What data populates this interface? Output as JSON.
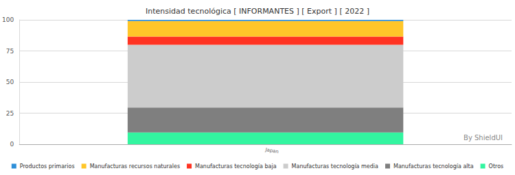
{
  "chart_data": {
    "type": "bar",
    "title": "Intensidad tecnológica [ INFORMANTES ] [ Export ] [ 2022 ]",
    "annotation": "By ShieldUI",
    "categories": [
      "Japan"
    ],
    "series": [
      {
        "name": "Productos primarios",
        "color": "#2f8fd8",
        "values": [
          1
        ]
      },
      {
        "name": "Manufacturas recursos naturales",
        "color": "#ffc629",
        "values": [
          12.5
        ]
      },
      {
        "name": "Manufacturas tecnología baja",
        "color": "#ff3322",
        "values": [
          6.5
        ]
      },
      {
        "name": "Manufacturas tecnología media",
        "color": "#cccccc",
        "values": [
          50.5
        ]
      },
      {
        "name": "Manufacturas tecnología alta",
        "color": "#7f7f7f",
        "values": [
          20
        ]
      },
      {
        "name": "Otros",
        "color": "#33f5a0",
        "values": [
          9.5
        ]
      }
    ],
    "ylim": [
      0,
      100
    ],
    "yticks": [
      0,
      25,
      50,
      75,
      100
    ],
    "stacked": true,
    "grid": true,
    "legend": "bottom"
  }
}
